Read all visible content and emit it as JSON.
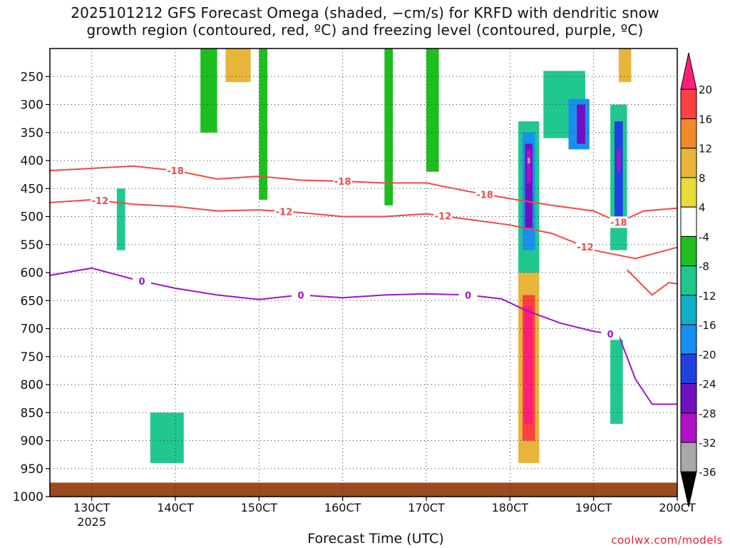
{
  "chart_data": {
    "type": "heatmap",
    "title_line1": "2025101212 GFS Forecast Omega (shaded, −cm/s) for KRFD with dendritic snow",
    "title_line2": "growth region (contoured, red, ºC) and freezing level (contoured, purple, ºC)",
    "xlabel": "Forecast Time (UTC)",
    "x_ticks": [
      {
        "label": "130CT",
        "day": 13
      },
      {
        "label": "140CT",
        "day": 14
      },
      {
        "label": "150CT",
        "day": 15
      },
      {
        "label": "160CT",
        "day": 16
      },
      {
        "label": "170CT",
        "day": 17
      },
      {
        "label": "180CT",
        "day": 18
      },
      {
        "label": "190CT",
        "day": 19
      },
      {
        "label": "200CT",
        "day": 20
      }
    ],
    "x_year_label": "2025",
    "xlim": [
      12.5,
      20.0
    ],
    "y_axis": "pressure (hPa)",
    "y_ticks": [
      250,
      300,
      350,
      400,
      450,
      500,
      550,
      600,
      650,
      700,
      750,
      800,
      850,
      900,
      950,
      1000
    ],
    "ylim": [
      1000,
      200
    ],
    "colorbar": {
      "levels": [
        20,
        16,
        12,
        8,
        4,
        -4,
        -8,
        -12,
        -16,
        -20,
        -24,
        -28,
        -32,
        -36
      ],
      "colors": [
        "#ff1e78",
        "#ff4040",
        "#f08a28",
        "#e8b43a",
        "#e8dc3c",
        "#ffffff",
        "#1ebe1e",
        "#20c890",
        "#10b0c8",
        "#1890f0",
        "#2040e0",
        "#7010c0",
        "#b010c8",
        "#a8a8a8",
        "#000000"
      ]
    },
    "contours": [
      {
        "name": "dgz-top",
        "value": -18,
        "color": "#f04848",
        "points": [
          [
            12.5,
            418
          ],
          [
            13.5,
            410
          ],
          [
            14.0,
            418
          ],
          [
            14.5,
            433
          ],
          [
            15.0,
            428
          ],
          [
            15.5,
            435
          ],
          [
            16.0,
            437
          ],
          [
            16.5,
            440
          ],
          [
            17.0,
            440
          ],
          [
            17.5,
            455
          ],
          [
            18.0,
            468
          ],
          [
            18.5,
            480
          ],
          [
            19.0,
            490
          ],
          [
            19.3,
            510
          ],
          [
            19.6,
            490
          ],
          [
            20.0,
            485
          ]
        ],
        "labels": [
          [
            14.0,
            "-18"
          ],
          [
            16.0,
            "-18"
          ],
          [
            17.7,
            "-18"
          ],
          [
            19.3,
            "-18"
          ]
        ]
      },
      {
        "name": "dgz-bottom",
        "value": -12,
        "color": "#f04848",
        "points": [
          [
            12.5,
            475
          ],
          [
            13.0,
            470
          ],
          [
            13.5,
            478
          ],
          [
            14.0,
            482
          ],
          [
            14.5,
            490
          ],
          [
            15.0,
            488
          ],
          [
            15.5,
            493
          ],
          [
            16.0,
            500
          ],
          [
            16.5,
            500
          ],
          [
            17.0,
            495
          ],
          [
            17.5,
            505
          ],
          [
            18.0,
            515
          ],
          [
            18.5,
            530
          ],
          [
            19.0,
            560
          ],
          [
            19.5,
            575
          ],
          [
            20.0,
            555
          ]
        ],
        "labels": [
          [
            13.1,
            "-12"
          ],
          [
            15.3,
            "-12"
          ],
          [
            17.2,
            "-12"
          ],
          [
            18.9,
            "-12"
          ]
        ]
      },
      {
        "name": "dgz-lower",
        "value": -12,
        "color": "#f04848",
        "points": [
          [
            19.4,
            595
          ],
          [
            19.7,
            640
          ],
          [
            19.9,
            618
          ],
          [
            20.0,
            620
          ]
        ],
        "labels": []
      },
      {
        "name": "freezing-level",
        "value": 0,
        "color": "#9a18c8",
        "points": [
          [
            12.5,
            605
          ],
          [
            13.0,
            592
          ],
          [
            13.5,
            612
          ],
          [
            14.0,
            628
          ],
          [
            14.5,
            640
          ],
          [
            15.0,
            648
          ],
          [
            15.5,
            640
          ],
          [
            16.0,
            645
          ],
          [
            16.5,
            640
          ],
          [
            17.0,
            638
          ],
          [
            17.5,
            640
          ],
          [
            17.9,
            647
          ],
          [
            18.2,
            668
          ],
          [
            18.6,
            690
          ],
          [
            19.0,
            705
          ],
          [
            19.3,
            712
          ],
          [
            19.5,
            790
          ],
          [
            19.7,
            835
          ],
          [
            20.0,
            835
          ]
        ],
        "labels": [
          [
            13.6,
            "0"
          ],
          [
            15.5,
            "0"
          ],
          [
            17.5,
            "0"
          ],
          [
            19.2,
            "0"
          ]
        ]
      }
    ],
    "cells": [
      {
        "x": [
          18.1,
          18.35
        ],
        "p": [
          330,
          600
        ],
        "v": -12
      },
      {
        "x": [
          18.15,
          18.3
        ],
        "p": [
          350,
          560
        ],
        "v": -20
      },
      {
        "x": [
          18.18,
          18.27
        ],
        "p": [
          370,
          520
        ],
        "v": -28
      },
      {
        "x": [
          18.2,
          18.25
        ],
        "p": [
          380,
          440
        ],
        "v": -32
      },
      {
        "x": [
          18.21,
          18.24
        ],
        "p": [
          395,
          405
        ],
        "v": -36
      },
      {
        "x": [
          18.1,
          18.35
        ],
        "p": [
          600,
          940
        ],
        "v": 8
      },
      {
        "x": [
          18.15,
          18.3
        ],
        "p": [
          640,
          900
        ],
        "v": 16
      },
      {
        "x": [
          18.17,
          18.27
        ],
        "p": [
          660,
          870
        ],
        "v": 20
      },
      {
        "x": [
          18.4,
          18.9
        ],
        "p": [
          240,
          360
        ],
        "v": -12
      },
      {
        "x": [
          18.7,
          18.95
        ],
        "p": [
          290,
          380
        ],
        "v": -20
      },
      {
        "x": [
          18.8,
          18.9
        ],
        "p": [
          300,
          370
        ],
        "v": -28
      },
      {
        "x": [
          19.2,
          19.4
        ],
        "p": [
          300,
          560
        ],
        "v": -12
      },
      {
        "x": [
          19.25,
          19.35
        ],
        "p": [
          330,
          500
        ],
        "v": -24
      },
      {
        "x": [
          19.28,
          19.32
        ],
        "p": [
          380,
          420
        ],
        "v": -32
      },
      {
        "x": [
          19.2,
          19.35
        ],
        "p": [
          720,
          870
        ],
        "v": -12
      },
      {
        "x": [
          19.3,
          19.45
        ],
        "p": [
          200,
          260
        ],
        "v": 8
      },
      {
        "x": [
          13.7,
          14.1
        ],
        "p": [
          850,
          940
        ],
        "v": -12
      },
      {
        "x": [
          14.6,
          14.9
        ],
        "p": [
          200,
          260
        ],
        "v": 8
      },
      {
        "x": [
          13.3,
          13.4
        ],
        "p": [
          450,
          560
        ],
        "v": -12
      },
      {
        "x": [
          14.3,
          14.5
        ],
        "p": [
          200,
          350
        ],
        "v": -8
      },
      {
        "x": [
          15.0,
          15.1
        ],
        "p": [
          200,
          470
        ],
        "v": -8
      },
      {
        "x": [
          16.5,
          16.6
        ],
        "p": [
          200,
          480
        ],
        "v": -8
      },
      {
        "x": [
          17.0,
          17.15
        ],
        "p": [
          200,
          420
        ],
        "v": -8
      }
    ]
  },
  "credit": "coolwx.com/models"
}
